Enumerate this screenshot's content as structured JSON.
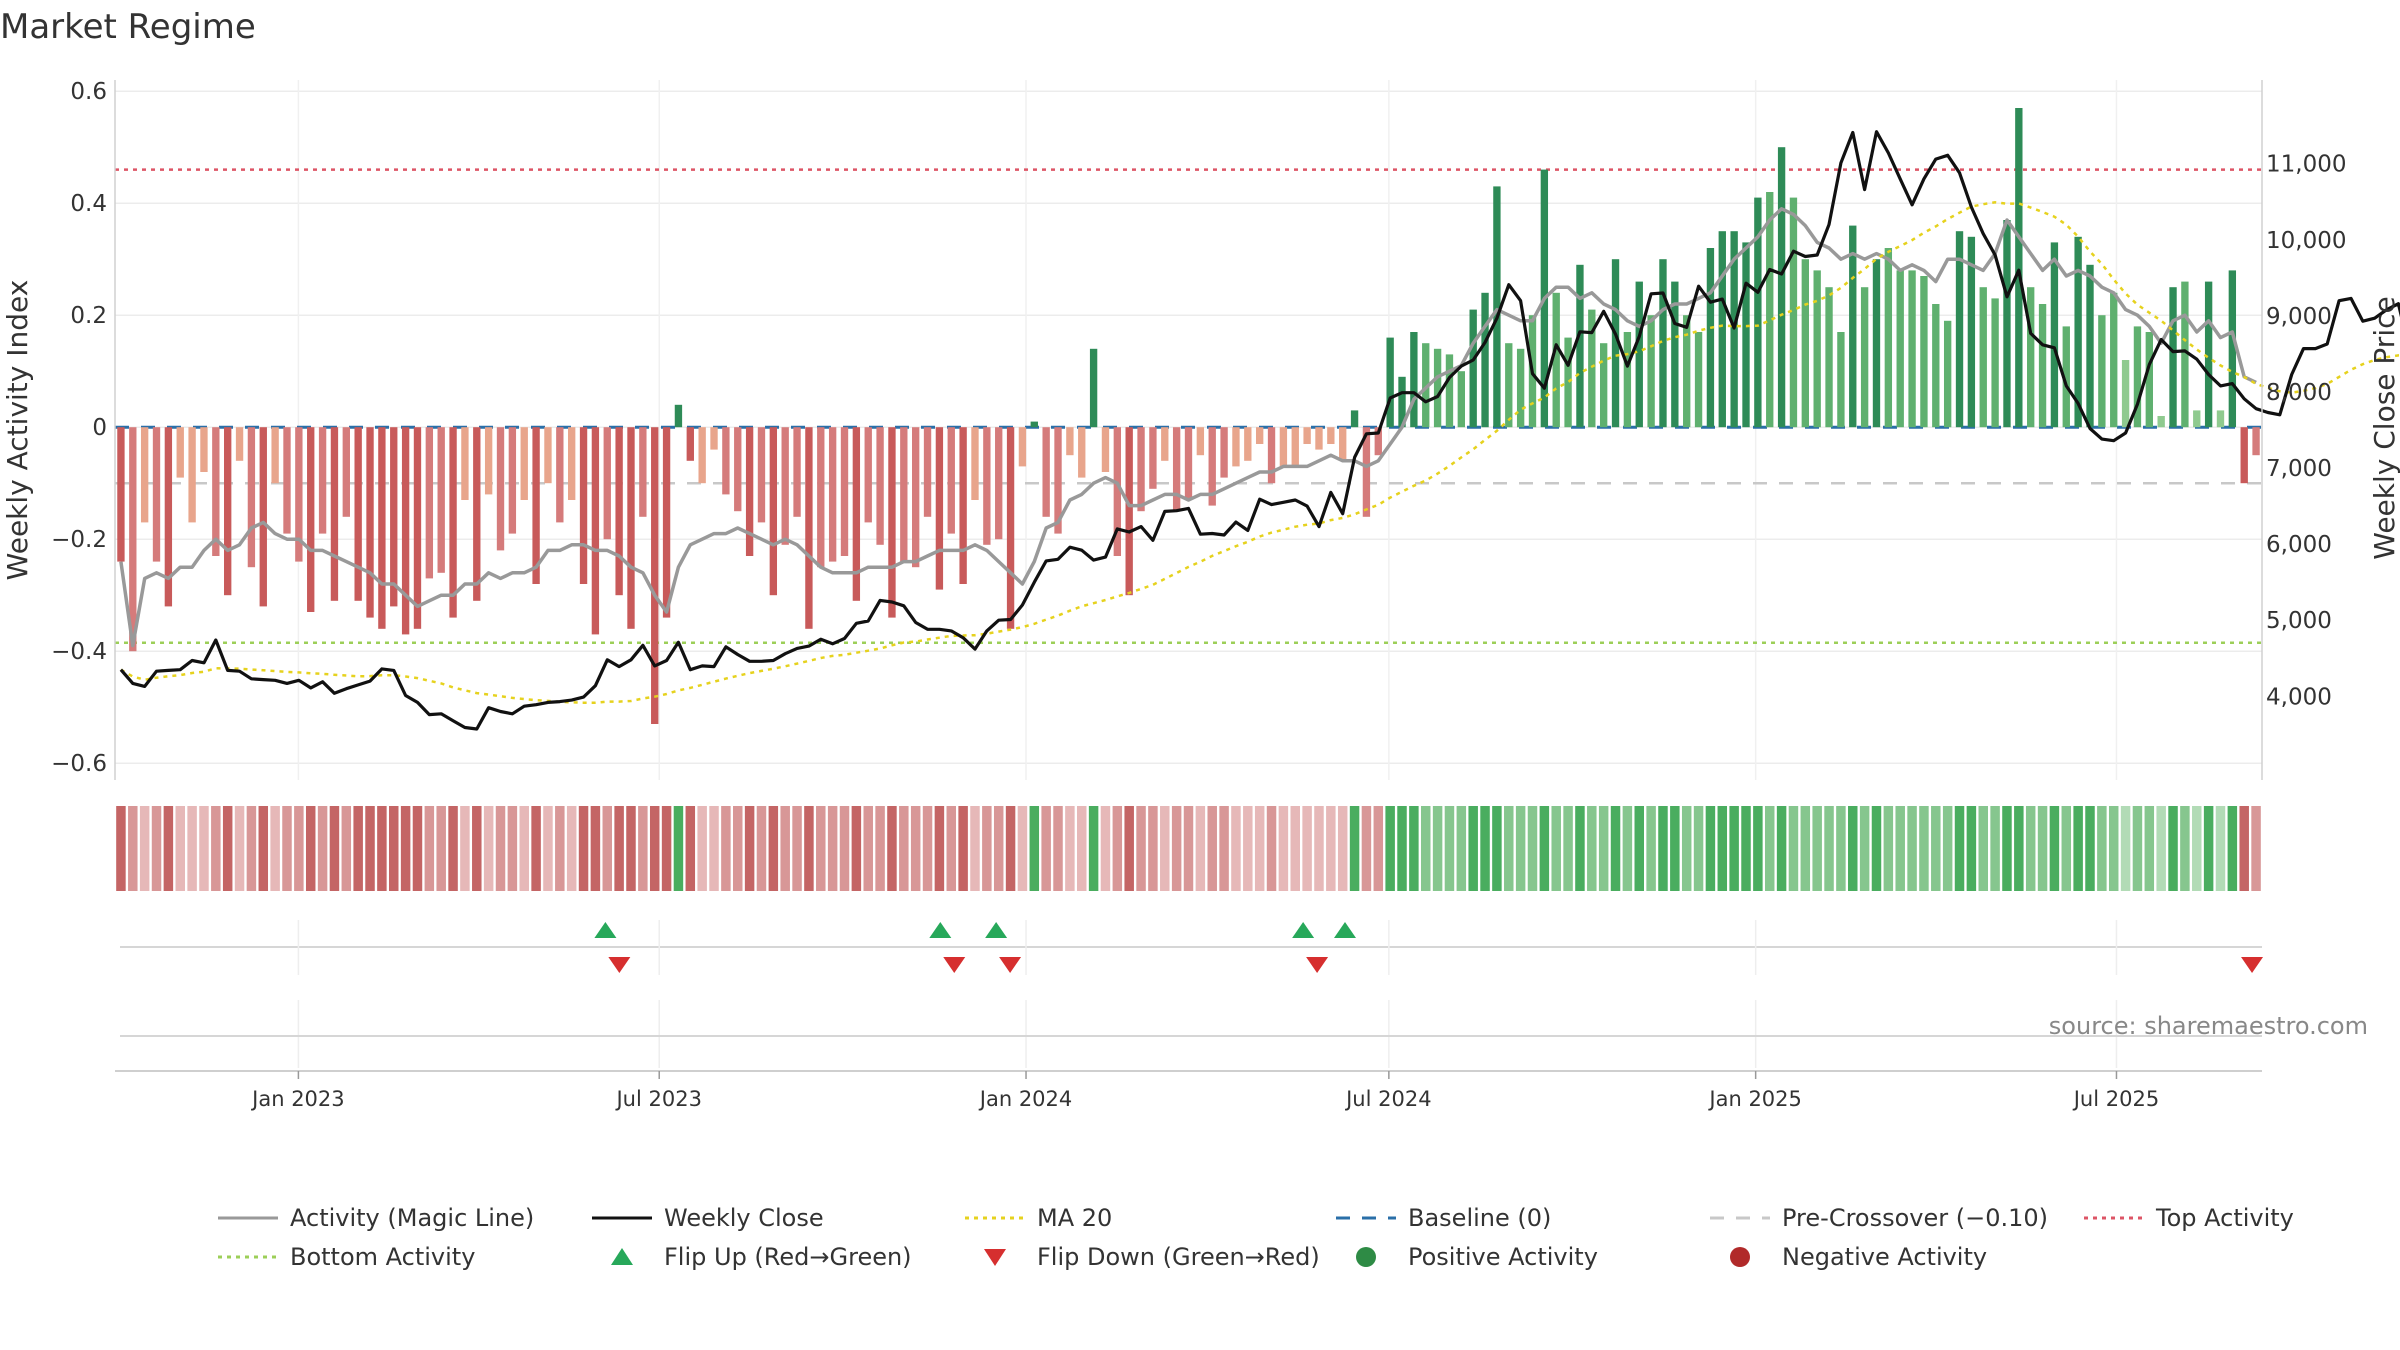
{
  "chart_data": {
    "type": "bar",
    "title": "Market Regime",
    "ylabel": "Weekly Activity Index",
    "y2label": "Weekly Close Price",
    "source": "source: sharemaestro.com",
    "ylim": [
      -0.63,
      0.62
    ],
    "y2lim": [
      2900,
      12100
    ],
    "yticks": [
      "0.6",
      "0.4",
      "0.2",
      "0",
      "−0.2",
      "−0.4",
      "−0.6"
    ],
    "ytick_values": [
      0.6,
      0.4,
      0.2,
      0,
      -0.2,
      -0.4,
      -0.6
    ],
    "y2ticks": [
      "11,000",
      "10,000",
      "9,000",
      "8,000",
      "7,000",
      "6,000",
      "5,000",
      "4,000"
    ],
    "y2tick_values": [
      11000,
      10000,
      9000,
      8000,
      7000,
      6000,
      5000,
      4000
    ],
    "x_start": "2022-10-01",
    "x_end": "2025-09-12",
    "xticks": [
      {
        "label": "Jan 2023",
        "date": "2023-01-01"
      },
      {
        "label": "Jul 2023",
        "date": "2023-07-01"
      },
      {
        "label": "Jan 2024",
        "date": "2024-01-01"
      },
      {
        "label": "Jul 2024",
        "date": "2024-07-01"
      },
      {
        "label": "Jan 2025",
        "date": "2025-01-01"
      },
      {
        "label": "Jul 2025",
        "date": "2025-07-01"
      }
    ],
    "top_activity": 0.46,
    "bottom_activity": -0.385,
    "pre_crossover": -0.1,
    "baseline": 0,
    "activity_bars": [
      -0.24,
      -0.4,
      -0.17,
      -0.24,
      -0.32,
      -0.09,
      -0.17,
      -0.08,
      -0.23,
      -0.3,
      -0.06,
      -0.25,
      -0.32,
      -0.1,
      -0.19,
      -0.24,
      -0.33,
      -0.19,
      -0.31,
      -0.16,
      -0.31,
      -0.34,
      -0.36,
      -0.32,
      -0.37,
      -0.36,
      -0.27,
      -0.26,
      -0.34,
      -0.13,
      -0.31,
      -0.12,
      -0.22,
      -0.19,
      -0.13,
      -0.28,
      -0.1,
      -0.17,
      -0.13,
      -0.28,
      -0.37,
      -0.2,
      -0.3,
      -0.36,
      -0.16,
      -0.53,
      -0.34,
      0.04,
      -0.06,
      -0.1,
      -0.04,
      -0.12,
      -0.15,
      -0.23,
      -0.17,
      -0.3,
      -0.21,
      -0.16,
      -0.36,
      -0.25,
      -0.24,
      -0.23,
      -0.31,
      -0.17,
      -0.21,
      -0.34,
      -0.24,
      -0.25,
      -0.16,
      -0.29,
      -0.19,
      -0.28,
      -0.13,
      -0.21,
      -0.2,
      -0.36,
      -0.07,
      0.01,
      -0.16,
      -0.19,
      -0.05,
      -0.09,
      0.14,
      -0.08,
      -0.23,
      -0.3,
      -0.15,
      -0.11,
      -0.06,
      -0.15,
      -0.13,
      -0.05,
      -0.14,
      -0.09,
      -0.07,
      -0.06,
      -0.03,
      -0.1,
      -0.07,
      -0.07,
      -0.03,
      -0.04,
      -0.03,
      -0.06,
      0.03,
      -0.16,
      -0.05,
      0.16,
      0.09,
      0.17,
      0.15,
      0.14,
      0.13,
      0.1,
      0.21,
      0.24,
      0.43,
      0.15,
      0.14,
      0.2,
      0.46,
      0.24,
      0.16,
      0.29,
      0.21,
      0.15,
      0.3,
      0.17,
      0.26,
      0.2,
      0.3,
      0.26,
      0.2,
      0.17,
      0.32,
      0.35,
      0.35,
      0.33,
      0.41,
      0.42,
      0.5,
      0.41,
      0.3,
      0.28,
      0.25,
      0.17,
      0.36,
      0.25,
      0.3,
      0.32,
      0.28,
      0.28,
      0.27,
      0.22,
      0.19,
      0.35,
      0.34,
      0.25,
      0.23,
      0.37,
      0.57,
      0.25,
      0.22,
      0.33,
      0.18,
      0.34,
      0.29,
      0.2,
      0.24,
      0.12,
      0.18,
      0.17,
      0.02,
      0.25,
      0.26,
      0.03,
      0.26,
      0.03,
      0.28,
      -0.1,
      -0.05
    ],
    "activity_shade": [
      3,
      2,
      1,
      2,
      3,
      1,
      1,
      1,
      2,
      3,
      1,
      2,
      3,
      1,
      2,
      2,
      3,
      2,
      3,
      2,
      3,
      3,
      3,
      3,
      3,
      3,
      2,
      2,
      3,
      1,
      3,
      1,
      2,
      2,
      1,
      3,
      1,
      2,
      1,
      3,
      3,
      2,
      3,
      3,
      2,
      3,
      3,
      3,
      3,
      1,
      1,
      2,
      2,
      3,
      2,
      3,
      2,
      2,
      3,
      2,
      2,
      2,
      3,
      2,
      2,
      3,
      2,
      2,
      2,
      3,
      2,
      3,
      1,
      2,
      2,
      3,
      1,
      3,
      2,
      2,
      1,
      1,
      3,
      1,
      2,
      3,
      2,
      2,
      1,
      2,
      2,
      1,
      2,
      2,
      1,
      1,
      1,
      2,
      1,
      1,
      1,
      1,
      1,
      1,
      3,
      2,
      2,
      3,
      3,
      3,
      2,
      2,
      2,
      2,
      3,
      3,
      3,
      2,
      2,
      2,
      3,
      2,
      2,
      3,
      2,
      2,
      3,
      2,
      3,
      2,
      3,
      3,
      2,
      2,
      3,
      3,
      3,
      3,
      3,
      2,
      3,
      2,
      2,
      2,
      2,
      2,
      3,
      2,
      3,
      2,
      2,
      2,
      2,
      2,
      2,
      3,
      3,
      2,
      2,
      3,
      3,
      2,
      2,
      3,
      2,
      3,
      3,
      2,
      2,
      1,
      2,
      2,
      1,
      3,
      2,
      1,
      3,
      1,
      3,
      3,
      2
    ],
    "activity_line": [
      -0.24,
      -0.39,
      -0.27,
      -0.26,
      -0.27,
      -0.25,
      -0.25,
      -0.22,
      -0.2,
      -0.22,
      -0.21,
      -0.18,
      -0.17,
      -0.19,
      -0.2,
      -0.2,
      -0.22,
      -0.22,
      -0.23,
      -0.24,
      -0.25,
      -0.26,
      -0.28,
      -0.28,
      -0.3,
      -0.32,
      -0.31,
      -0.3,
      -0.3,
      -0.28,
      -0.28,
      -0.26,
      -0.27,
      -0.26,
      -0.26,
      -0.25,
      -0.22,
      -0.22,
      -0.21,
      -0.21,
      -0.22,
      -0.22,
      -0.23,
      -0.25,
      -0.26,
      -0.3,
      -0.33,
      -0.25,
      -0.21,
      -0.2,
      -0.19,
      -0.19,
      -0.18,
      -0.19,
      -0.2,
      -0.21,
      -0.2,
      -0.21,
      -0.23,
      -0.25,
      -0.26,
      -0.26,
      -0.26,
      -0.25,
      -0.25,
      -0.25,
      -0.24,
      -0.24,
      -0.23,
      -0.22,
      -0.22,
      -0.22,
      -0.21,
      -0.22,
      -0.24,
      -0.26,
      -0.28,
      -0.24,
      -0.18,
      -0.17,
      -0.13,
      -0.12,
      -0.1,
      -0.09,
      -0.1,
      -0.14,
      -0.14,
      -0.13,
      -0.12,
      -0.12,
      -0.13,
      -0.12,
      -0.12,
      -0.11,
      -0.1,
      -0.09,
      -0.08,
      -0.08,
      -0.07,
      -0.07,
      -0.07,
      -0.06,
      -0.05,
      -0.06,
      -0.06,
      -0.07,
      -0.06,
      -0.03,
      0.0,
      0.05,
      0.07,
      0.09,
      0.1,
      0.11,
      0.15,
      0.18,
      0.21,
      0.2,
      0.19,
      0.19,
      0.23,
      0.25,
      0.25,
      0.23,
      0.24,
      0.22,
      0.21,
      0.19,
      0.18,
      0.19,
      0.21,
      0.22,
      0.22,
      0.23,
      0.24,
      0.27,
      0.3,
      0.32,
      0.34,
      0.37,
      0.39,
      0.38,
      0.36,
      0.33,
      0.32,
      0.3,
      0.31,
      0.3,
      0.31,
      0.3,
      0.28,
      0.29,
      0.28,
      0.26,
      0.3,
      0.3,
      0.29,
      0.28,
      0.31,
      0.37,
      0.34,
      0.31,
      0.28,
      0.3,
      0.27,
      0.28,
      0.27,
      0.25,
      0.24,
      0.21,
      0.2,
      0.18,
      0.15,
      0.19,
      0.2,
      0.17,
      0.19,
      0.16,
      0.17,
      0.09,
      0.08
    ],
    "weekly_close": [
      4350,
      4170,
      4130,
      4330,
      4340,
      4350,
      4470,
      4440,
      4740,
      4340,
      4330,
      4230,
      4220,
      4210,
      4170,
      4210,
      4110,
      4190,
      4040,
      4100,
      4150,
      4200,
      4360,
      4340,
      4010,
      3920,
      3760,
      3770,
      3680,
      3590,
      3570,
      3850,
      3800,
      3770,
      3870,
      3890,
      3920,
      3930,
      3950,
      3990,
      4140,
      4480,
      4390,
      4480,
      4670,
      4400,
      4470,
      4710,
      4350,
      4400,
      4390,
      4650,
      4550,
      4460,
      4460,
      4470,
      4560,
      4630,
      4660,
      4750,
      4690,
      4760,
      4960,
      4990,
      5260,
      5240,
      5190,
      4970,
      4880,
      4880,
      4860,
      4770,
      4620,
      4860,
      5000,
      5010,
      5200,
      5500,
      5780,
      5800,
      5960,
      5920,
      5790,
      5830,
      6200,
      6160,
      6230,
      6050,
      6430,
      6440,
      6470,
      6130,
      6140,
      6120,
      6290,
      6180,
      6590,
      6520,
      6550,
      6580,
      6500,
      6230,
      6680,
      6400,
      7140,
      7450,
      7460,
      7920,
      7990,
      7990,
      7870,
      7940,
      8190,
      8340,
      8420,
      8650,
      8970,
      9410,
      9200,
      8240,
      8050,
      8620,
      8350,
      8790,
      8780,
      9060,
      8760,
      8340,
      8730,
      9290,
      9300,
      8900,
      8850,
      9390,
      9180,
      9220,
      8840,
      9430,
      9310,
      9610,
      9550,
      9850,
      9780,
      9800,
      10200,
      11010,
      11410,
      10660,
      11420,
      11140,
      10800,
      10460,
      10800,
      11060,
      11110,
      10880,
      10430,
      10080,
      9800,
      9250,
      9600,
      8770,
      8620,
      8580,
      8080,
      7850,
      7520,
      7380,
      7360,
      7460,
      7840,
      8360,
      8690,
      8530,
      8540,
      8430,
      8230,
      8080,
      8110,
      7910,
      7780,
      7730,
      7700,
      8230,
      8570,
      8570,
      8630,
      9200,
      9230,
      8930,
      8970,
      9080,
      9160,
      8500,
      8640,
      8560
    ]
  },
  "flips": {
    "up_dates": [
      "2023-06-04",
      "2023-11-19",
      "2023-12-17",
      "2024-05-19",
      "2024-06-09"
    ],
    "down_dates": [
      "2023-06-11",
      "2023-11-26",
      "2023-12-24",
      "2024-05-26",
      "2025-09-07"
    ]
  },
  "legend": [
    {
      "label": "Activity (Magic Line)",
      "kind": "line",
      "color": "#999999",
      "dash": ""
    },
    {
      "label": "Weekly Close",
      "kind": "line",
      "color": "#111111",
      "dash": ""
    },
    {
      "label": "MA 20",
      "kind": "line",
      "color": "#e6d21e",
      "dash": "4,5"
    },
    {
      "label": "Baseline (0)",
      "kind": "line",
      "color": "#2a6fa8",
      "dash": "14,12"
    },
    {
      "label": "Pre-Crossover (−0.10)",
      "kind": "line",
      "color": "#c8c8c8",
      "dash": "14,12"
    },
    {
      "label": "Top Activity",
      "kind": "line",
      "color": "#dd5566",
      "dash": "4,5"
    },
    {
      "label": "Bottom Activity",
      "kind": "line",
      "color": "#9ccf58",
      "dash": "4,5"
    },
    {
      "label": "Flip Up (Red→Green)",
      "kind": "tri-up",
      "color": "#27a85a",
      "dash": ""
    },
    {
      "label": "Flip Down (Green→Red)",
      "kind": "tri-down",
      "color": "#d62f2f",
      "dash": ""
    },
    {
      "label": "Positive Activity",
      "kind": "dot",
      "color": "#2e8b45",
      "dash": ""
    },
    {
      "label": "Negative Activity",
      "kind": "dot",
      "color": "#b12a2a",
      "dash": ""
    }
  ],
  "colors": {
    "pos": [
      "#cfe8d2",
      "#8fca8f",
      "#5fb06f",
      "#2e8b57"
    ],
    "neg": [
      "#eecdcd",
      "#e8a58c",
      "#d57b7b",
      "#c85a5a"
    ],
    "strip_pos": [
      "#d8eed8",
      "#b2dbb6",
      "#86c68e",
      "#4aad5f"
    ],
    "strip_neg": [
      "#f0d4d4",
      "#e6b8b8",
      "#d89797",
      "#c46565"
    ]
  }
}
